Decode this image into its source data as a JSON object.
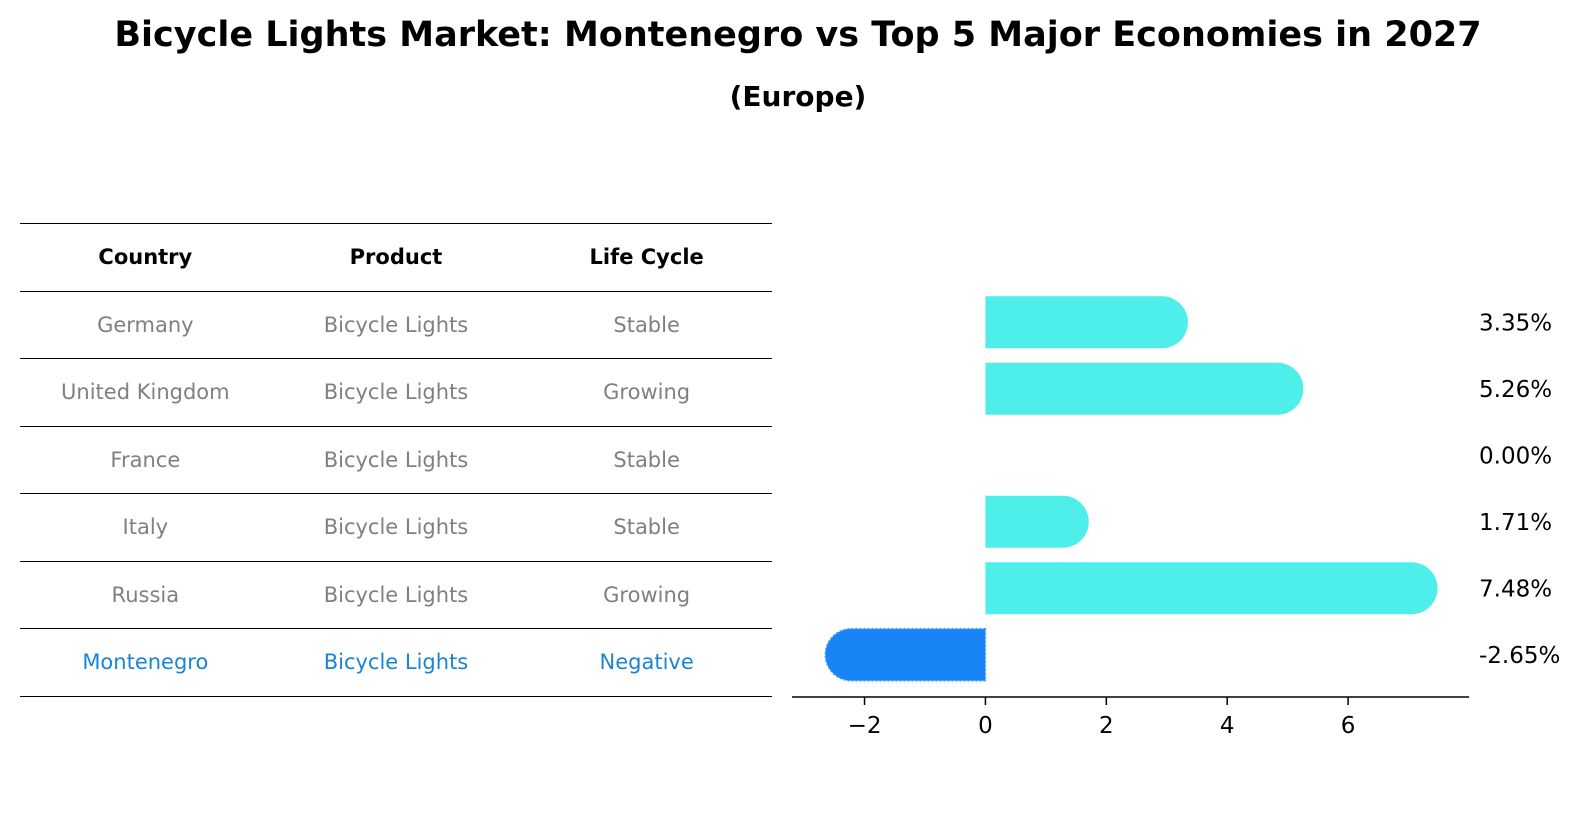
{
  "chart_data": {
    "type": "bar",
    "title": "Bicycle Lights Market: Montenegro vs Top 5 Major Economies in 2027",
    "subtitle": "(Europe)",
    "table": {
      "columns": [
        "Country",
        "Product",
        "Life Cycle"
      ],
      "rows": [
        [
          "Germany",
          "Bicycle Lights",
          "Stable"
        ],
        [
          "United Kingdom",
          "Bicycle Lights",
          "Growing"
        ],
        [
          "France",
          "Bicycle Lights",
          "Stable"
        ],
        [
          "Italy",
          "Bicycle Lights",
          "Stable"
        ],
        [
          "Russia",
          "Bicycle Lights",
          "Growing"
        ],
        [
          "Montenegro",
          "Bicycle Lights",
          "Negative"
        ]
      ],
      "highlight_row": 5
    },
    "categories": [
      "Germany",
      "United Kingdom",
      "France",
      "Italy",
      "Russia",
      "Montenegro"
    ],
    "values": [
      3.35,
      5.26,
      0.0,
      1.71,
      7.48,
      -2.65
    ],
    "value_labels": [
      "3.35%",
      "5.26%",
      "0.00%",
      "1.71%",
      "7.48%",
      "-2.65%"
    ],
    "xlim": [
      -3.2,
      8.0
    ],
    "xticks": [
      -2,
      0,
      2,
      4,
      6
    ],
    "xtick_labels": [
      "−2",
      "0",
      "2",
      "4",
      "6"
    ],
    "grid": false,
    "colors": {
      "positive": "#4eeeea",
      "negative": "#1984f5",
      "highlight_text": "#1a84d9",
      "muted_text": "#808080"
    }
  }
}
